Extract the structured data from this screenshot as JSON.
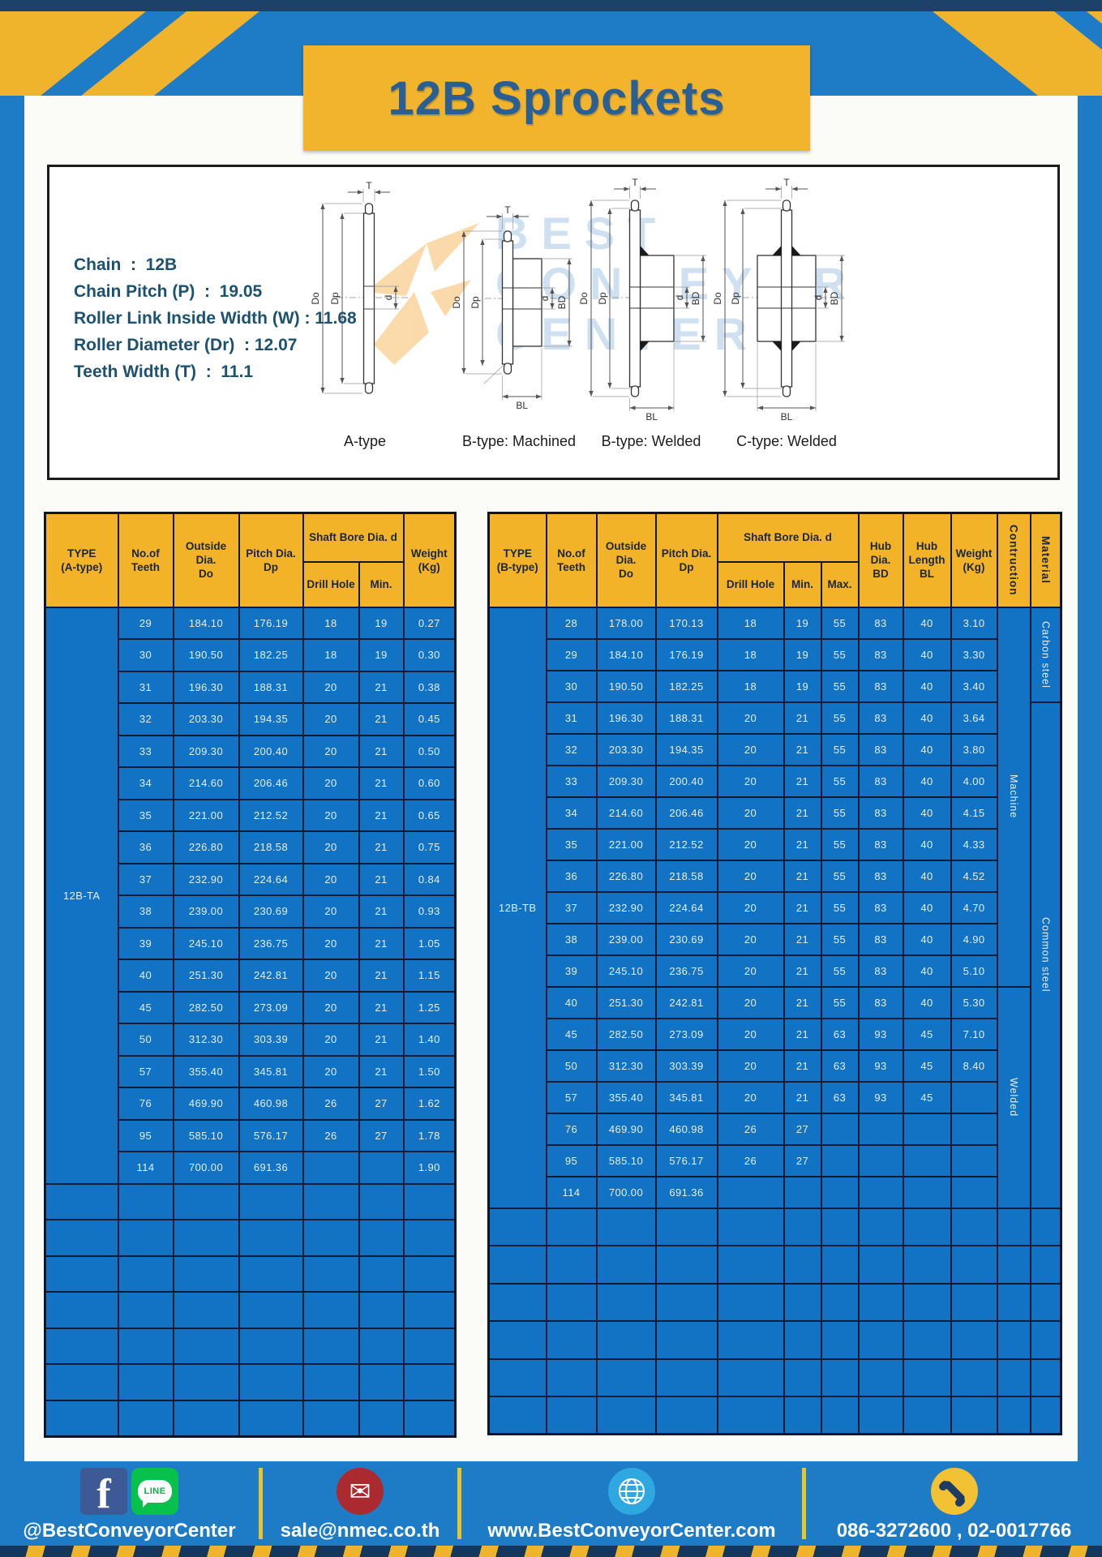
{
  "page": {
    "title": "12B Sprockets"
  },
  "specs": {
    "lines": [
      "Chain  :  12B",
      "Chain Pitch (P)  :  19.05",
      "Roller Link Inside Width (W) : 11.68",
      "Roller Diameter (Dr)  : 12.07",
      "Teeth Width (T)  :  11.1"
    ]
  },
  "watermark": {
    "lines": [
      "BEST",
      "CONVEYOR",
      "CENTER"
    ]
  },
  "diagram": {
    "types": [
      "A-type",
      "B-type: Machined",
      "B-type: Welded",
      "C-type: Welded"
    ],
    "dims": {
      "T": "T",
      "Do": "Do",
      "Dp": "Dp",
      "d": "d",
      "BD": "BD",
      "BL": "BL"
    }
  },
  "left_table": {
    "type_label": "12B-TA",
    "header": {
      "type": [
        "TYPE",
        "(A-type)"
      ],
      "teeth": [
        "No.of",
        "Teeth"
      ],
      "outside": [
        "Outside",
        "Dia.",
        "Do"
      ],
      "pitch": [
        "Pitch Dia.",
        "Dp"
      ],
      "shaft_group": "Shaft Bore Dia. d",
      "drill": "Drill Hole",
      "min": "Min.",
      "weight": [
        "Weight",
        "(Kg)"
      ]
    },
    "rows": [
      [
        "29",
        "184.10",
        "176.19",
        "18",
        "19",
        "0.27"
      ],
      [
        "30",
        "190.50",
        "182.25",
        "18",
        "19",
        "0.30"
      ],
      [
        "31",
        "196.30",
        "188.31",
        "20",
        "21",
        "0.38"
      ],
      [
        "32",
        "203.30",
        "194.35",
        "20",
        "21",
        "0.45"
      ],
      [
        "33",
        "209.30",
        "200.40",
        "20",
        "21",
        "0.50"
      ],
      [
        "34",
        "214.60",
        "206.46",
        "20",
        "21",
        "0.60"
      ],
      [
        "35",
        "221.00",
        "212.52",
        "20",
        "21",
        "0.65"
      ],
      [
        "36",
        "226.80",
        "218.58",
        "20",
        "21",
        "0.75"
      ],
      [
        "37",
        "232.90",
        "224.64",
        "20",
        "21",
        "0.84"
      ],
      [
        "38",
        "239.00",
        "230.69",
        "20",
        "21",
        "0.93"
      ],
      [
        "39",
        "245.10",
        "236.75",
        "20",
        "21",
        "1.05"
      ],
      [
        "40",
        "251.30",
        "242.81",
        "20",
        "21",
        "1.15"
      ],
      [
        "45",
        "282.50",
        "273.09",
        "20",
        "21",
        "1.25"
      ],
      [
        "50",
        "312.30",
        "303.39",
        "20",
        "21",
        "1.40"
      ],
      [
        "57",
        "355.40",
        "345.81",
        "20",
        "21",
        "1.50"
      ],
      [
        "76",
        "469.90",
        "460.98",
        "26",
        "27",
        "1.62"
      ],
      [
        "95",
        "585.10",
        "576.17",
        "26",
        "27",
        "1.78"
      ],
      [
        "114",
        "700.00",
        "691.36",
        "",
        "",
        "1.90"
      ]
    ],
    "empty_rows": 7
  },
  "right_table": {
    "type_label": "12B-TB",
    "header": {
      "type": [
        "TYPE",
        "(B-type)"
      ],
      "teeth": [
        "No.of",
        "Teeth"
      ],
      "outside": [
        "Outside",
        "Dia.",
        "Do"
      ],
      "pitch": [
        "Pitch Dia.",
        "Dp"
      ],
      "shaft_group": "Shaft Bore Dia. d",
      "drill": "Drill Hole",
      "min": "Min.",
      "max": "Max.",
      "hub_dia": [
        "Hub Dia.",
        "BD"
      ],
      "hub_len": [
        "Hub",
        "Length",
        "BL"
      ],
      "weight": [
        "Weight",
        "(Kg)"
      ],
      "construction": "Contruction",
      "material": "Material"
    },
    "rows": [
      [
        "28",
        "178.00",
        "170.13",
        "18",
        "19",
        "55",
        "83",
        "40",
        "3.10"
      ],
      [
        "29",
        "184.10",
        "176.19",
        "18",
        "19",
        "55",
        "83",
        "40",
        "3.30"
      ],
      [
        "30",
        "190.50",
        "182.25",
        "18",
        "19",
        "55",
        "83",
        "40",
        "3.40"
      ],
      [
        "31",
        "196.30",
        "188.31",
        "20",
        "21",
        "55",
        "83",
        "40",
        "3.64"
      ],
      [
        "32",
        "203.30",
        "194.35",
        "20",
        "21",
        "55",
        "83",
        "40",
        "3.80"
      ],
      [
        "33",
        "209.30",
        "200.40",
        "20",
        "21",
        "55",
        "83",
        "40",
        "4.00"
      ],
      [
        "34",
        "214.60",
        "206.46",
        "20",
        "21",
        "55",
        "83",
        "40",
        "4.15"
      ],
      [
        "35",
        "221.00",
        "212.52",
        "20",
        "21",
        "55",
        "83",
        "40",
        "4.33"
      ],
      [
        "36",
        "226.80",
        "218.58",
        "20",
        "21",
        "55",
        "83",
        "40",
        "4.52"
      ],
      [
        "37",
        "232.90",
        "224.64",
        "20",
        "21",
        "55",
        "83",
        "40",
        "4.70"
      ],
      [
        "38",
        "239.00",
        "230.69",
        "20",
        "21",
        "55",
        "83",
        "40",
        "4.90"
      ],
      [
        "39",
        "245.10",
        "236.75",
        "20",
        "21",
        "55",
        "83",
        "40",
        "5.10"
      ],
      [
        "40",
        "251.30",
        "242.81",
        "20",
        "21",
        "55",
        "83",
        "40",
        "5.30"
      ],
      [
        "45",
        "282.50",
        "273.09",
        "20",
        "21",
        "63",
        "93",
        "45",
        "7.10"
      ],
      [
        "50",
        "312.30",
        "303.39",
        "20",
        "21",
        "63",
        "93",
        "45",
        "8.40"
      ],
      [
        "57",
        "355.40",
        "345.81",
        "20",
        "21",
        "63",
        "93",
        "45",
        ""
      ],
      [
        "76",
        "469.90",
        "460.98",
        "26",
        "27",
        "",
        "",
        "",
        ""
      ],
      [
        "95",
        "585.10",
        "576.17",
        "26",
        "27",
        "",
        "",
        "",
        ""
      ],
      [
        "114",
        "700.00",
        "691.36",
        "",
        "",
        "",
        "",
        "",
        ""
      ]
    ],
    "construction_cells": [
      {
        "label": "Machine",
        "rows": 12
      },
      {
        "label": "Welded",
        "rows": 7
      }
    ],
    "material_cells": [
      {
        "label": "Carbon steel",
        "rows": 3
      },
      {
        "label": "Common  steel",
        "rows": 16
      }
    ],
    "empty_rows": 6
  },
  "footer": {
    "facebook_f": "f",
    "line_text": "LINE",
    "social_label": "@BestConveyorCenter",
    "email": "sale@nmec.co.th",
    "website": "www.BestConveyorCenter.com",
    "phones": "086-3272600 , 02-0017766"
  }
}
